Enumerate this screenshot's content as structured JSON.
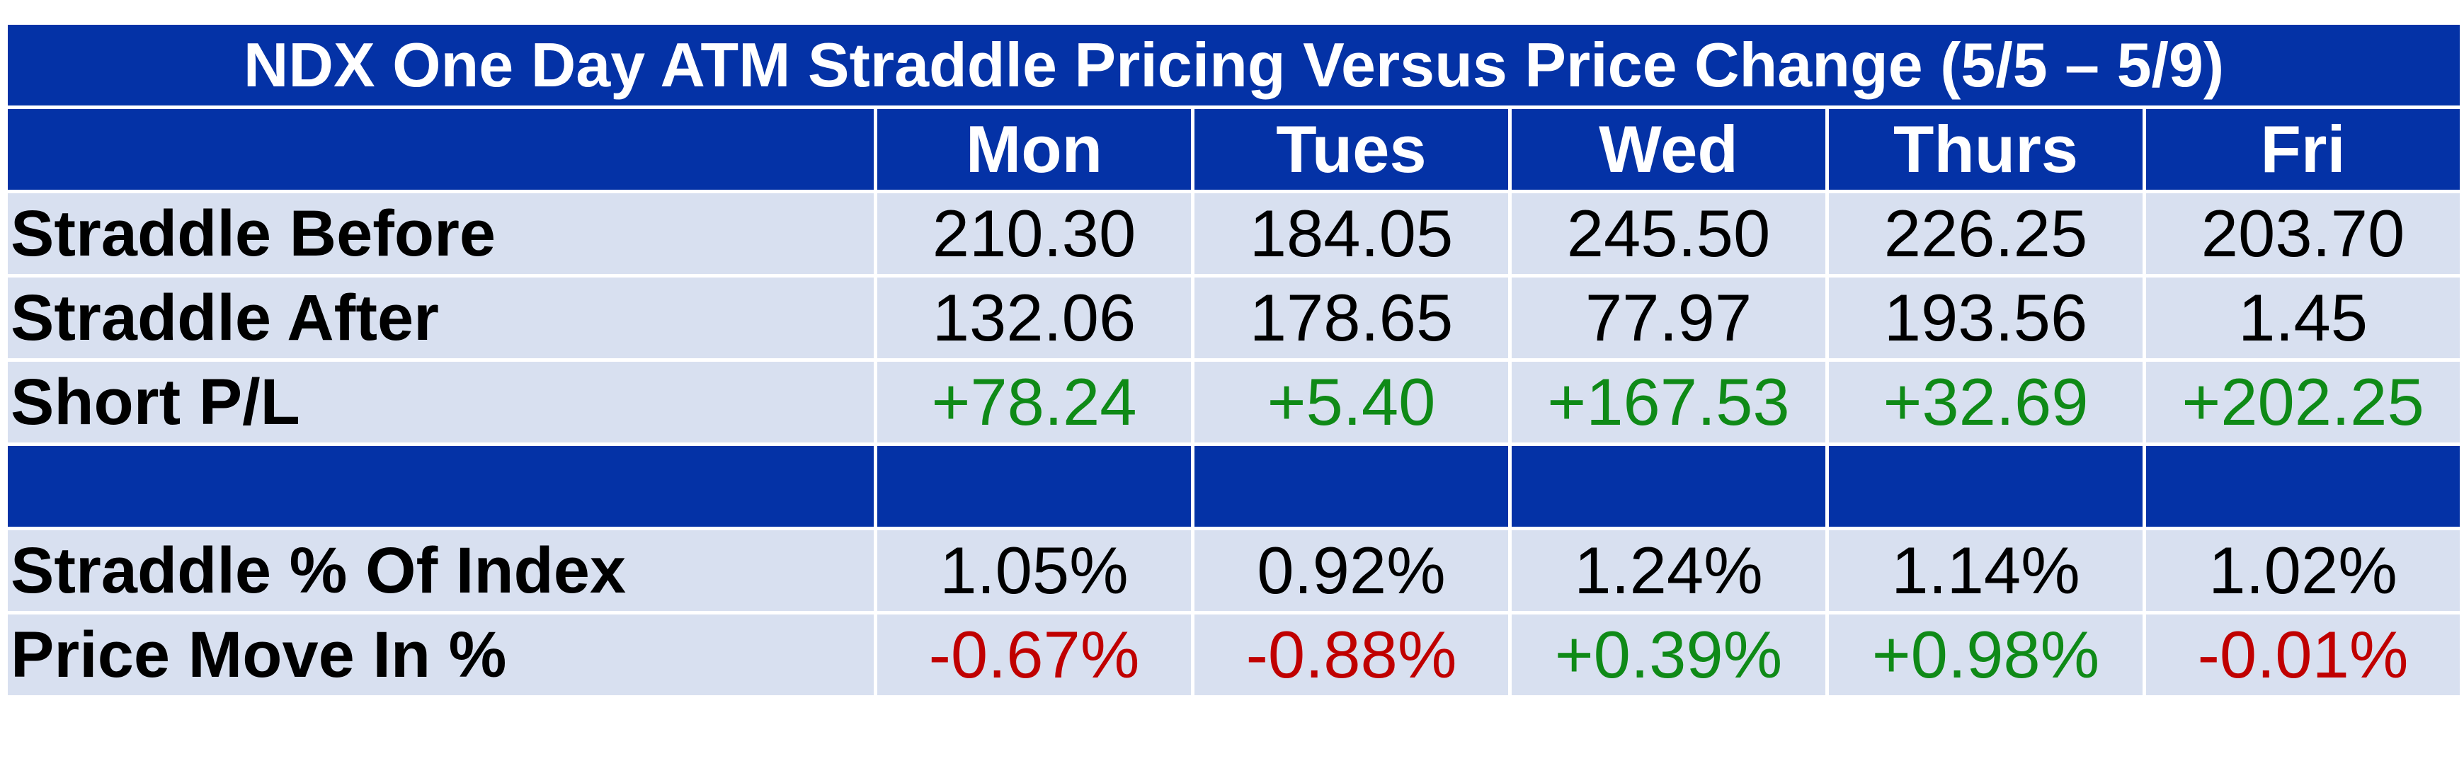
{
  "chart_data": {
    "type": "table",
    "title": "NDX One Day ATM Straddle Pricing Versus Price Change (5/5 – 5/9)",
    "columns": [
      "Mon",
      "Tues",
      "Wed",
      "Thurs",
      "Fri"
    ],
    "rows": [
      {
        "label": "Straddle Before",
        "values": [
          "210.30",
          "184.05",
          "245.50",
          "226.25",
          "203.70"
        ]
      },
      {
        "label": "Straddle After",
        "values": [
          "132.06",
          "178.65",
          "77.97",
          "193.56",
          "1.45"
        ]
      },
      {
        "label": "Short P/L",
        "values": [
          "+78.24",
          "+5.40",
          "+167.53",
          "+32.69",
          "+202.25"
        ]
      },
      {
        "label": "Straddle % Of Index",
        "values": [
          "1.05%",
          "0.92%",
          "1.24%",
          "1.14%",
          "1.02%"
        ]
      },
      {
        "label": "Price Move In %",
        "values": [
          "-0.67%",
          "-0.88%",
          "+0.39%",
          "+0.98%",
          "-0.01%"
        ]
      }
    ]
  },
  "colors": {
    "header_blue": "#0432a6",
    "row_background": "#d8e0f0",
    "positive": "#0f8a17",
    "negative": "#c00000"
  }
}
